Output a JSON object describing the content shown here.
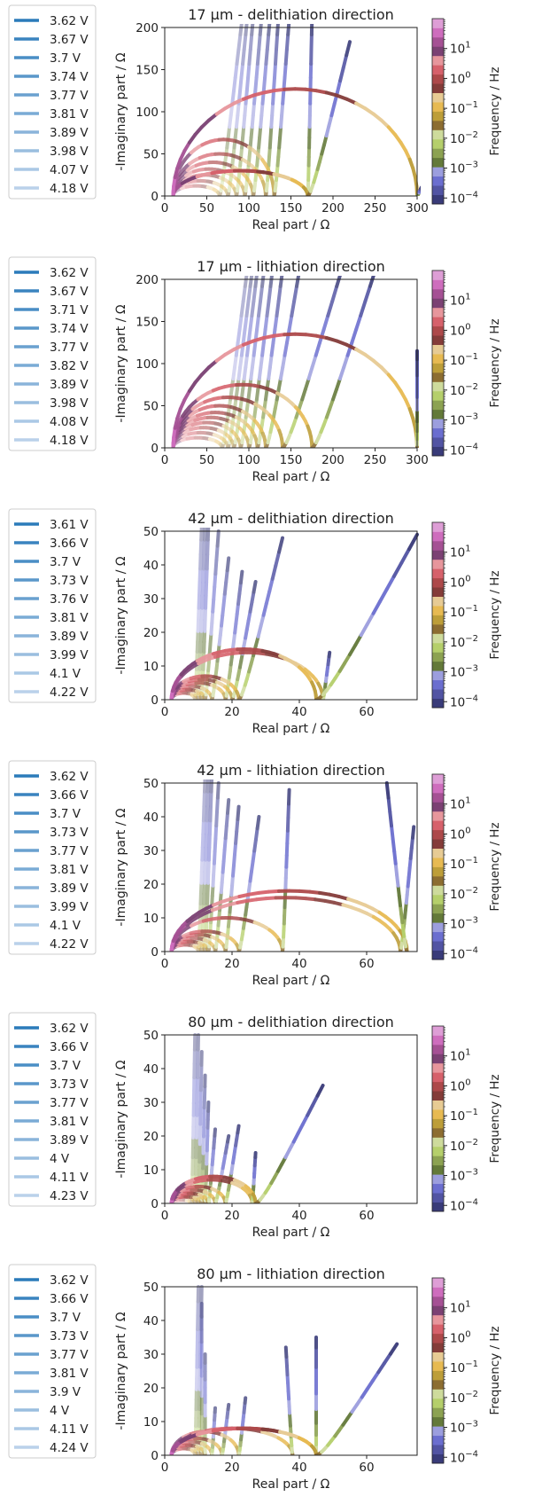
{
  "colorbar": {
    "label": "Frequency  /  Hz",
    "ticks": [
      {
        "base": "10",
        "exp": "1",
        "value": 1
      },
      {
        "base": "10",
        "exp": "0",
        "value": 0
      },
      {
        "base": "10",
        "exp": "−1",
        "value": -1
      },
      {
        "base": "10",
        "exp": "−2",
        "value": -2
      },
      {
        "base": "10",
        "exp": "−3",
        "value": -3
      },
      {
        "base": "10",
        "exp": "−4",
        "value": -4
      }
    ],
    "log_range": [
      -4.2,
      2.0
    ],
    "colors": [
      "#393b79",
      "#5254a3",
      "#6b6ecf",
      "#9c9ede",
      "#637939",
      "#8ca252",
      "#b5cf6b",
      "#cedb9c",
      "#8c6d31",
      "#bd9e39",
      "#e7ba52",
      "#e7cb94",
      "#843c39",
      "#ad494a",
      "#d6616b",
      "#e7969c",
      "#7b4173",
      "#a55194",
      "#ce6dbd",
      "#de9ed6"
    ]
  },
  "legend_colors": [
    "#2b7bba",
    "#3a84bf",
    "#4a8ec5",
    "#5a97ca",
    "#6aa1cf",
    "#7aabd5",
    "#8ab4da",
    "#9abedf",
    "#aac8e5",
    "#bad1ea"
  ],
  "chart_data": [
    {
      "type": "line",
      "title": "17 µm - delithiation direction",
      "xlabel": "Real part  /  Ω",
      "ylabel": "-Imaginary part  /  Ω",
      "xlim": [
        0,
        300
      ],
      "ylim": [
        0,
        200
      ],
      "xticks": [
        0,
        50,
        100,
        150,
        200,
        250,
        300
      ],
      "yticks": [
        0,
        50,
        100,
        150,
        200
      ],
      "legend": [
        "3.62 V",
        "3.67 V",
        "3.7 V",
        "3.74 V",
        "3.77 V",
        "3.81 V",
        "3.89 V",
        "3.98 V",
        "4.07 V",
        "4.18 V"
      ],
      "series": [
        {
          "r0": 10,
          "arc_end": 300,
          "arc_top": 127,
          "tail_end": [
            305,
            10
          ]
        },
        {
          "r0": 10,
          "arc_end": 170,
          "arc_top": 30,
          "tail_end": [
            220,
            183
          ]
        },
        {
          "r0": 10,
          "arc_end": 170,
          "arc_top": 30,
          "tail_end": [
            175,
            210
          ]
        },
        {
          "r0": 10,
          "arc_end": 130,
          "arc_top": 67,
          "tail_end": [
            148,
            210
          ]
        },
        {
          "r0": 10,
          "arc_end": 120,
          "arc_top": 50,
          "tail_end": [
            135,
            210
          ]
        },
        {
          "r0": 10,
          "arc_end": 105,
          "arc_top": 40,
          "tail_end": [
            125,
            210
          ]
        },
        {
          "r0": 10,
          "arc_end": 95,
          "arc_top": 32,
          "tail_end": [
            115,
            210
          ]
        },
        {
          "r0": 10,
          "arc_end": 85,
          "arc_top": 25,
          "tail_end": [
            105,
            210
          ]
        },
        {
          "r0": 10,
          "arc_end": 75,
          "arc_top": 18,
          "tail_end": [
            98,
            210
          ]
        },
        {
          "r0": 10,
          "arc_end": 65,
          "arc_top": 12,
          "tail_end": [
            92,
            210
          ]
        }
      ]
    },
    {
      "type": "line",
      "title": "17 µm - lithiation direction",
      "xlabel": "Real part  /  Ω",
      "ylabel": "-Imaginary part  /  Ω",
      "xlim": [
        0,
        300
      ],
      "ylim": [
        0,
        200
      ],
      "xticks": [
        0,
        50,
        100,
        150,
        200,
        250,
        300
      ],
      "yticks": [
        0,
        50,
        100,
        150,
        200
      ],
      "legend": [
        "3.62 V",
        "3.67 V",
        "3.71 V",
        "3.74 V",
        "3.77 V",
        "3.82 V",
        "3.89 V",
        "3.98 V",
        "4.08 V",
        "4.18 V"
      ],
      "series": [
        {
          "r0": 10,
          "arc_end": 300,
          "arc_top": 135,
          "tail_end": [
            300,
            115
          ]
        },
        {
          "r0": 10,
          "arc_end": 175,
          "arc_top": 75,
          "tail_end": [
            250,
            210
          ]
        },
        {
          "r0": 10,
          "arc_end": 140,
          "arc_top": 60,
          "tail_end": [
            210,
            210
          ]
        },
        {
          "r0": 10,
          "arc_end": 120,
          "arc_top": 50,
          "tail_end": [
            160,
            210
          ]
        },
        {
          "r0": 10,
          "arc_end": 110,
          "arc_top": 42,
          "tail_end": [
            140,
            210
          ]
        },
        {
          "r0": 10,
          "arc_end": 100,
          "arc_top": 36,
          "tail_end": [
            128,
            210
          ]
        },
        {
          "r0": 10,
          "arc_end": 90,
          "arc_top": 30,
          "tail_end": [
            118,
            210
          ]
        },
        {
          "r0": 10,
          "arc_end": 82,
          "arc_top": 24,
          "tail_end": [
            110,
            210
          ]
        },
        {
          "r0": 10,
          "arc_end": 75,
          "arc_top": 18,
          "tail_end": [
            104,
            210
          ]
        },
        {
          "r0": 10,
          "arc_end": 68,
          "arc_top": 12,
          "tail_end": [
            98,
            210
          ]
        }
      ]
    },
    {
      "type": "line",
      "title": "42 µm - delithiation direction",
      "xlabel": "Real part  /  Ω",
      "ylabel": "-Imaginary part  /  Ω",
      "xlim": [
        0,
        75
      ],
      "ylim": [
        0,
        50
      ],
      "xticks": [
        0,
        20,
        40,
        60
      ],
      "yticks": [
        0,
        10,
        20,
        30,
        40,
        50
      ],
      "legend": [
        "3.61 V",
        "3.66 V",
        "3.7 V",
        "3.73 V",
        "3.76 V",
        "3.81 V",
        "3.89 V",
        "3.99 V",
        "4.1 V",
        "4.22 V"
      ],
      "series": [
        {
          "r0": 2,
          "arc_end": 45,
          "arc_top": 15,
          "tail_end": [
            75,
            49
          ]
        },
        {
          "r0": 2,
          "arc_end": 47,
          "arc_top": 14,
          "tail_end": [
            49,
            14
          ]
        },
        {
          "r0": 2,
          "arc_end": 22,
          "arc_top": 7,
          "tail_end": [
            35,
            48
          ]
        },
        {
          "r0": 2,
          "arc_end": 20,
          "arc_top": 6,
          "tail_end": [
            27,
            35
          ]
        },
        {
          "r0": 2,
          "arc_end": 18,
          "arc_top": 5,
          "tail_end": [
            23,
            38
          ]
        },
        {
          "r0": 2,
          "arc_end": 14,
          "arc_top": 4,
          "tail_end": [
            19,
            42
          ]
        },
        {
          "r0": 2,
          "arc_end": 12,
          "arc_top": 3,
          "tail_end": [
            16,
            50
          ]
        },
        {
          "r0": 2,
          "arc_end": 11,
          "arc_top": 3,
          "tail_end": [
            13,
            52
          ]
        },
        {
          "r0": 2,
          "arc_end": 10,
          "arc_top": 2,
          "tail_end": [
            12,
            52
          ]
        },
        {
          "r0": 2,
          "arc_end": 9,
          "arc_top": 2,
          "tail_end": [
            11,
            52
          ]
        }
      ]
    },
    {
      "type": "line",
      "title": "42 µm - lithiation direction",
      "xlabel": "Real part  /  Ω",
      "ylabel": "-Imaginary part  /  Ω",
      "xlim": [
        0,
        75
      ],
      "ylim": [
        0,
        50
      ],
      "xticks": [
        0,
        20,
        40,
        60
      ],
      "yticks": [
        0,
        10,
        20,
        30,
        40,
        50
      ],
      "legend": [
        "3.62 V",
        "3.66 V",
        "3.7 V",
        "3.73 V",
        "3.77 V",
        "3.81 V",
        "3.89 V",
        "3.99 V",
        "4.1 V",
        "4.22 V"
      ],
      "series": [
        {
          "r0": 2,
          "arc_end": 72,
          "arc_top": 18,
          "tail_end": [
            66,
            50
          ]
        },
        {
          "r0": 2,
          "arc_end": 70,
          "arc_top": 16,
          "tail_end": [
            74,
            37
          ]
        },
        {
          "r0": 2,
          "arc_end": 35,
          "arc_top": 10,
          "tail_end": [
            37,
            48
          ]
        },
        {
          "r0": 2,
          "arc_end": 22,
          "arc_top": 6,
          "tail_end": [
            28,
            40
          ]
        },
        {
          "r0": 2,
          "arc_end": 18,
          "arc_top": 5,
          "tail_end": [
            22,
            43
          ]
        },
        {
          "r0": 2,
          "arc_end": 15,
          "arc_top": 4,
          "tail_end": [
            19,
            45
          ]
        },
        {
          "r0": 2,
          "arc_end": 13,
          "arc_top": 3,
          "tail_end": [
            16,
            50
          ]
        },
        {
          "r0": 2,
          "arc_end": 12,
          "arc_top": 3,
          "tail_end": [
            14,
            52
          ]
        },
        {
          "r0": 2,
          "arc_end": 11,
          "arc_top": 2,
          "tail_end": [
            13,
            52
          ]
        },
        {
          "r0": 2,
          "arc_end": 10,
          "arc_top": 2,
          "tail_end": [
            12,
            52
          ]
        }
      ]
    },
    {
      "type": "line",
      "title": "80 µm - delithiation direction",
      "xlabel": "Real part  /  Ω",
      "ylabel": "-Imaginary part  /  Ω",
      "xlim": [
        0,
        75
      ],
      "ylim": [
        0,
        50
      ],
      "xticks": [
        0,
        20,
        40,
        60
      ],
      "yticks": [
        0,
        10,
        20,
        30,
        40,
        50
      ],
      "legend": [
        "3.62 V",
        "3.66 V",
        "3.7 V",
        "3.73 V",
        "3.77 V",
        "3.81 V",
        "3.89 V",
        "4 V",
        "4.11 V",
        "4.23 V"
      ],
      "series": [
        {
          "r0": 2,
          "arc_end": 27,
          "arc_top": 8,
          "tail_end": [
            47,
            35
          ]
        },
        {
          "r0": 2,
          "arc_end": 26,
          "arc_top": 7,
          "tail_end": [
            27,
            15
          ]
        },
        {
          "r0": 2,
          "arc_end": 18,
          "arc_top": 5,
          "tail_end": [
            22,
            23
          ]
        },
        {
          "r0": 2,
          "arc_end": 15,
          "arc_top": 4,
          "tail_end": [
            19,
            20
          ]
        },
        {
          "r0": 2,
          "arc_end": 13,
          "arc_top": 3,
          "tail_end": [
            15,
            22
          ]
        },
        {
          "r0": 2,
          "arc_end": 12,
          "arc_top": 3,
          "tail_end": [
            13,
            30
          ]
        },
        {
          "r0": 2,
          "arc_end": 11,
          "arc_top": 2,
          "tail_end": [
            12,
            38
          ]
        },
        {
          "r0": 2,
          "arc_end": 10,
          "arc_top": 2,
          "tail_end": [
            11,
            45
          ]
        },
        {
          "r0": 2,
          "arc_end": 9,
          "arc_top": 2,
          "tail_end": [
            10,
            50
          ]
        },
        {
          "r0": 2,
          "arc_end": 8,
          "arc_top": 1,
          "tail_end": [
            9,
            50
          ]
        }
      ]
    },
    {
      "type": "line",
      "title": "80 µm - lithiation direction",
      "xlabel": "Real part  /  Ω",
      "ylabel": "-Imaginary part  /  Ω",
      "xlim": [
        0,
        75
      ],
      "ylim": [
        0,
        50
      ],
      "xticks": [
        0,
        20,
        40,
        60
      ],
      "yticks": [
        0,
        10,
        20,
        30,
        40,
        50
      ],
      "legend": [
        "3.62 V",
        "3.66 V",
        "3.7 V",
        "3.73 V",
        "3.77 V",
        "3.81 V",
        "3.9 V",
        "4 V",
        "4.11 V",
        "4.24 V"
      ],
      "series": [
        {
          "r0": 2,
          "arc_end": 45,
          "arc_top": 8,
          "tail_end": [
            69,
            33
          ]
        },
        {
          "r0": 2,
          "arc_end": 45,
          "arc_top": 8,
          "tail_end": [
            45,
            35
          ]
        },
        {
          "r0": 2,
          "arc_end": 38,
          "arc_top": 8,
          "tail_end": [
            36,
            32
          ]
        },
        {
          "r0": 2,
          "arc_end": 22,
          "arc_top": 7,
          "tail_end": [
            24,
            17
          ]
        },
        {
          "r0": 2,
          "arc_end": 17,
          "arc_top": 5,
          "tail_end": [
            19,
            15
          ]
        },
        {
          "r0": 2,
          "arc_end": 14,
          "arc_top": 4,
          "tail_end": [
            15,
            14
          ]
        },
        {
          "r0": 2,
          "arc_end": 12,
          "arc_top": 3,
          "tail_end": [
            12,
            30
          ]
        },
        {
          "r0": 2,
          "arc_end": 11,
          "arc_top": 3,
          "tail_end": [
            11,
            45
          ]
        },
        {
          "r0": 2,
          "arc_end": 10,
          "arc_top": 2,
          "tail_end": [
            11,
            50
          ]
        },
        {
          "r0": 2,
          "arc_end": 9,
          "arc_top": 2,
          "tail_end": [
            10,
            50
          ]
        }
      ]
    }
  ]
}
